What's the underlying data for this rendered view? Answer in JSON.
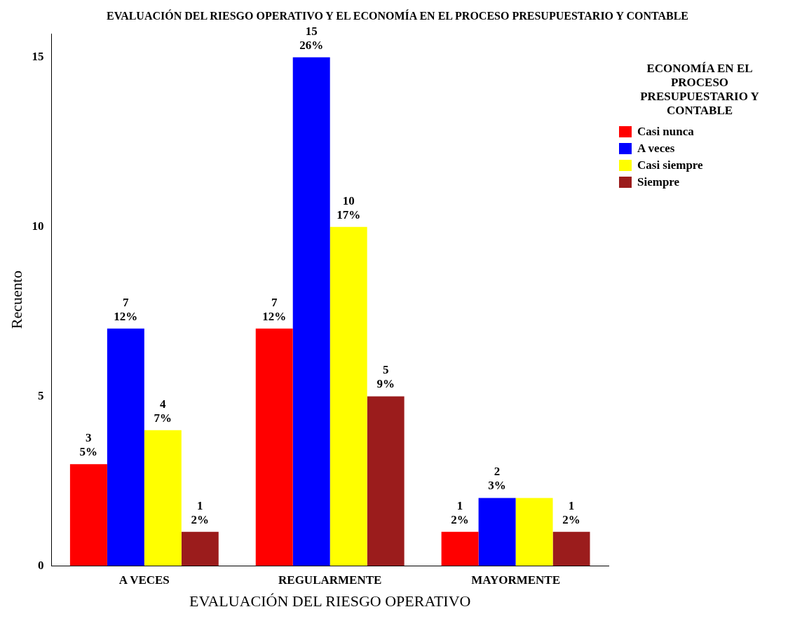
{
  "chart_data": {
    "type": "bar",
    "title": "EVALUACIÓN DEL RIESGO OPERATIVO Y EL ECONOMÍA EN EL PROCESO PRESUPUESTARIO Y CONTABLE",
    "xlabel": "EVALUACIÓN DEL RIESGO OPERATIVO",
    "ylabel": "Recuento",
    "legend_title": "ECONOMÍA EN EL PROCESO PRESUPUESTARIO Y CONTABLE",
    "legend": "right",
    "categories": [
      "A VECES",
      "REGULARMENTE",
      "MAYORMENTE"
    ],
    "series": [
      {
        "name": "Casi nunca",
        "color": "#ff0000",
        "values": [
          3,
          7,
          1
        ],
        "value_labels": [
          "3\n5%",
          "7\n12%",
          "1\n2%"
        ]
      },
      {
        "name": "A veces",
        "color": "#0000ff",
        "values": [
          7,
          15,
          2
        ],
        "value_labels": [
          "7\n12%",
          "15\n26%",
          "2\n3%"
        ]
      },
      {
        "name": "Casi siempre",
        "color": "#ffff00",
        "values": [
          4,
          10,
          2
        ],
        "value_labels": [
          "4\n7%",
          "10\n17%",
          null
        ]
      },
      {
        "name": "Siempre",
        "color": "#9b1c1c",
        "values": [
          1,
          5,
          1
        ],
        "value_labels": [
          "1\n2%",
          "5\n9%",
          "1\n2%"
        ]
      }
    ],
    "ylim": [
      0,
      15.7
    ],
    "yticks": [
      0,
      5,
      10,
      15
    ],
    "grid": false
  }
}
